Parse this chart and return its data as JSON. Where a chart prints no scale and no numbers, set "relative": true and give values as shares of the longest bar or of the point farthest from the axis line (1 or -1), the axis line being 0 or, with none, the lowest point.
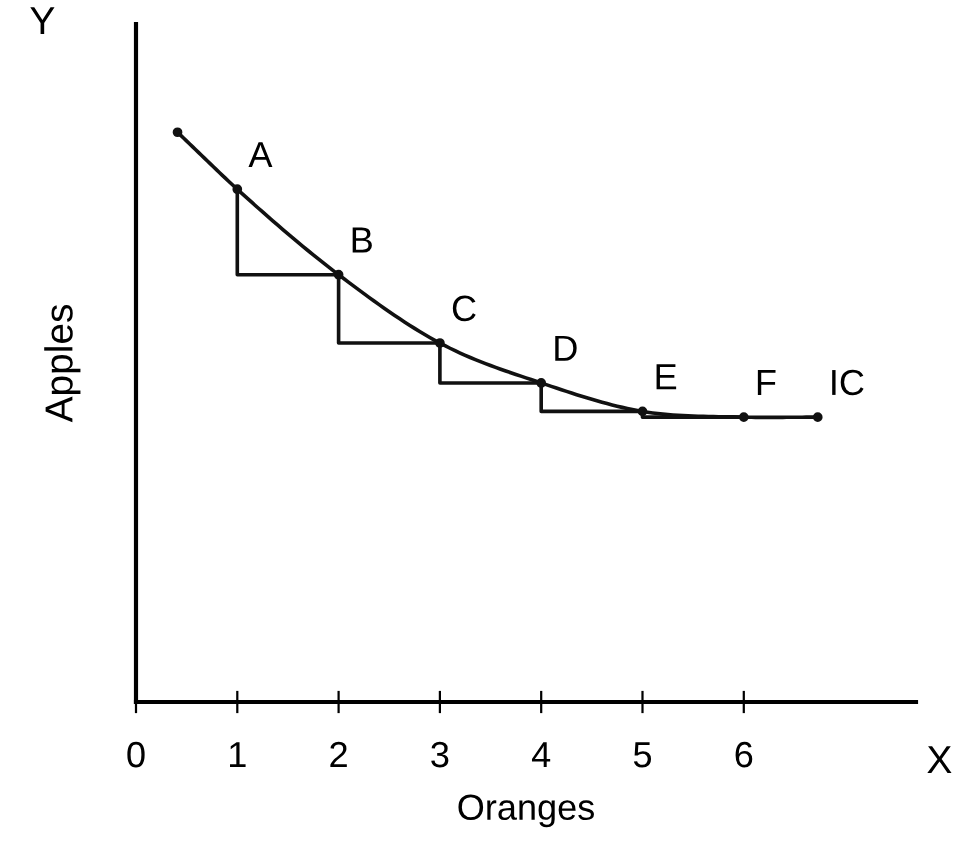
{
  "chart_data": {
    "type": "line",
    "relative": true,
    "xlabel": "Oranges",
    "ylabel": "Apples",
    "xlim": [
      0,
      7.7
    ],
    "xticks": [
      0,
      1,
      2,
      3,
      4,
      5,
      6
    ],
    "grid": false,
    "legend": false,
    "series": [
      {
        "color": "#111111",
        "x": [
          0.41,
          1,
          2,
          3,
          4,
          5,
          6,
          6.73
        ],
        "values": [
          1.0,
          0.9,
          0.75,
          0.63,
          0.56,
          0.51,
          0.5,
          0.5
        ],
        "marker": "circle"
      },
      {
        "type": "step",
        "color": "#111111",
        "x": [
          1,
          2,
          3,
          4,
          5,
          6
        ],
        "values": [
          0.9,
          0.75,
          0.63,
          0.56,
          0.51,
          0.5
        ]
      }
    ],
    "annotations": [
      {
        "text": "A",
        "x": 1,
        "y": 0.9
      },
      {
        "text": "B",
        "x": 2,
        "y": 0.75
      },
      {
        "text": "C",
        "x": 3,
        "y": 0.63
      },
      {
        "text": "D",
        "x": 4,
        "y": 0.56
      },
      {
        "text": "E",
        "x": 5,
        "y": 0.51
      },
      {
        "text": "F",
        "x": 6,
        "y": 0.5
      },
      {
        "text": "IC",
        "x": 6.73,
        "y": 0.5
      },
      "Y",
      "X"
    ]
  }
}
